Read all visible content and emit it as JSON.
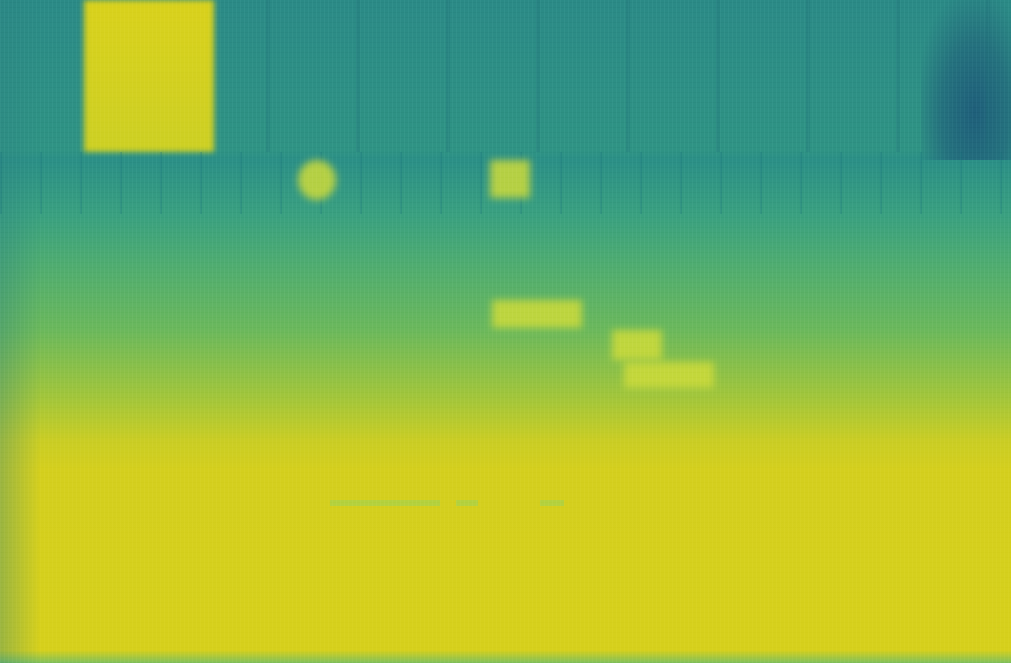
{
  "image": {
    "kind": "heatmap-overlay-screenshot",
    "colors": {
      "teal": "#2b8a86",
      "green": "#5db468",
      "yellow": "#d6d01c",
      "dark_corner": "#1f5f7a"
    },
    "visible_text": []
  }
}
